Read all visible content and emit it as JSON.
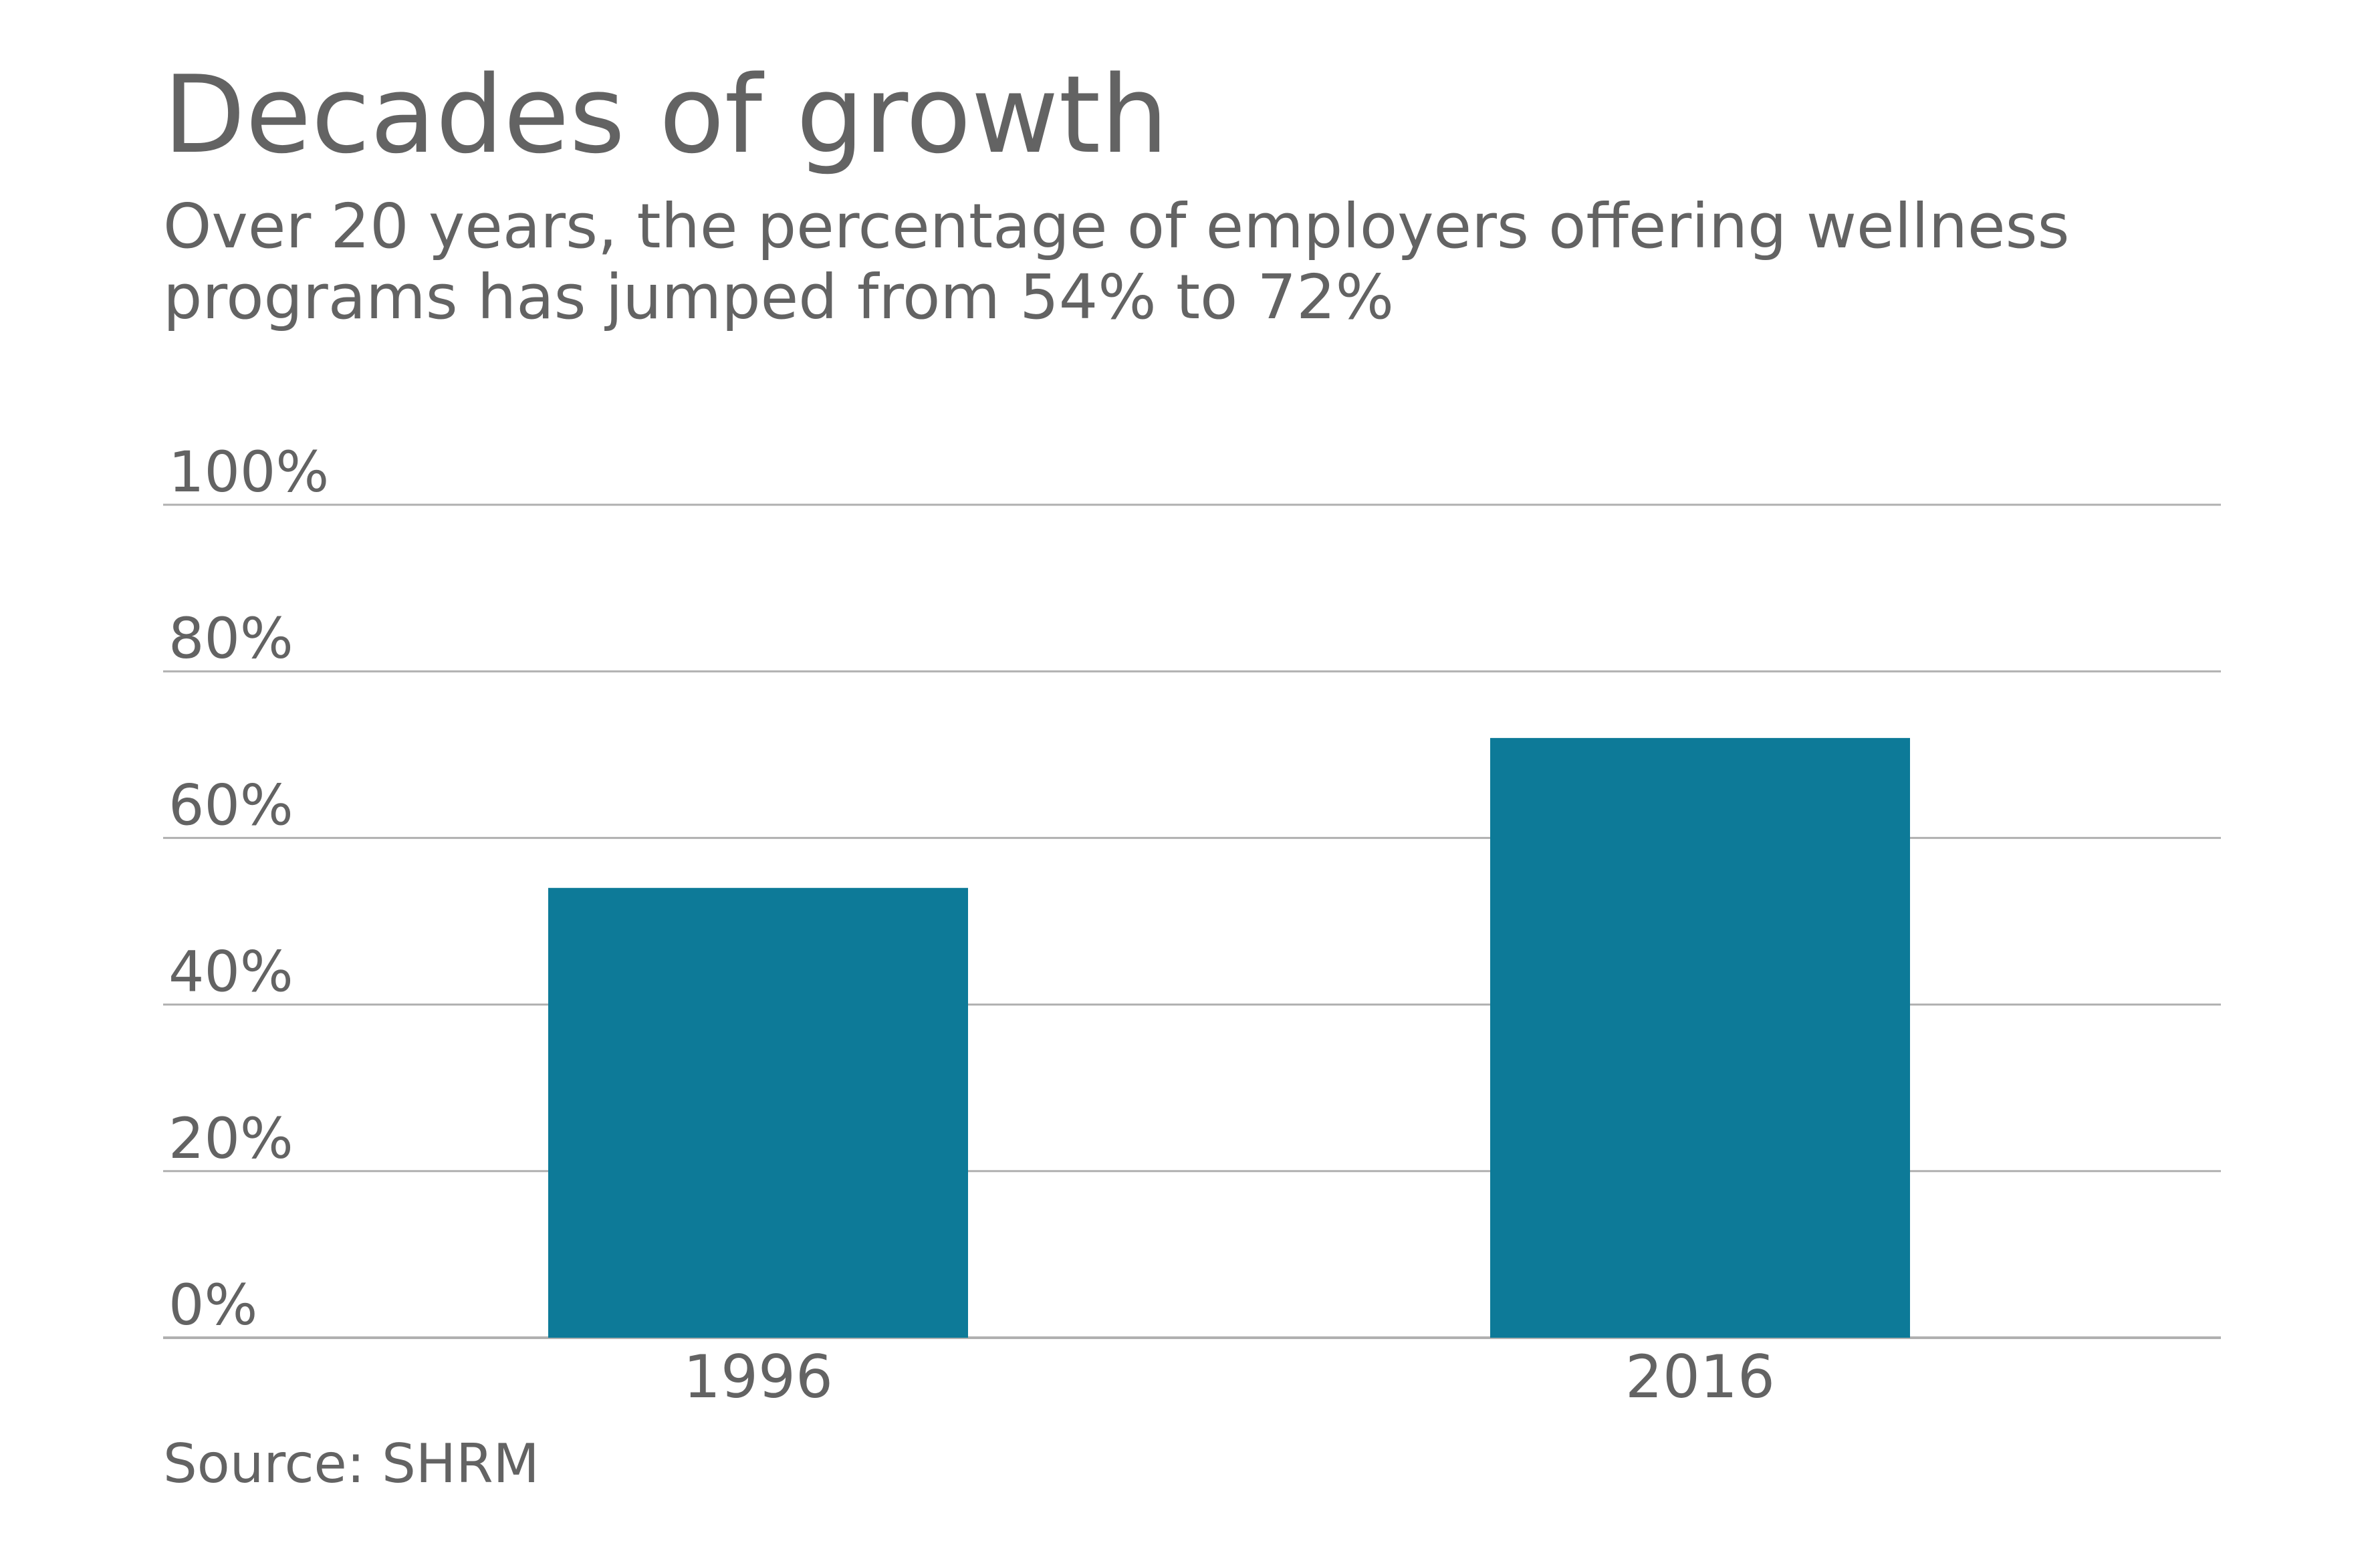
{
  "title": "Decades of growth",
  "subtitle": "Over 20 years, the percentage of employers offering wellness programs has jumped from 54% to 72%",
  "source": "Source: SHRM",
  "colors": {
    "bar": "#0d7a98",
    "text": "#636363",
    "gridline": "#b0b0b0"
  },
  "chart_data": {
    "type": "bar",
    "categories": [
      "1996",
      "2016"
    ],
    "values": [
      54,
      72
    ],
    "ylim": [
      0,
      100
    ],
    "yticks": [
      0,
      20,
      40,
      60,
      80,
      100
    ],
    "ytick_labels": [
      "0%",
      "20%",
      "40%",
      "60%",
      "80%",
      "100%"
    ],
    "grid": true,
    "title": "Decades of growth",
    "xlabel": "",
    "ylabel": ""
  }
}
